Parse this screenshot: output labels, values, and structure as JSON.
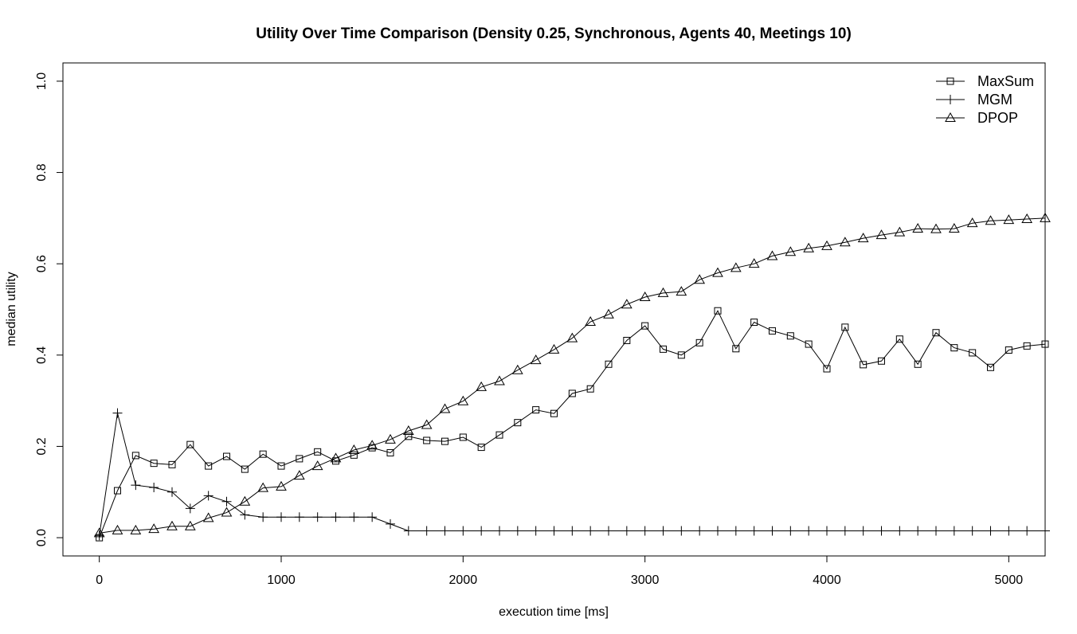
{
  "chart_data": {
    "type": "line",
    "title": "Utility Over Time Comparison (Density 0.25, Synchronous, Agents 40, Meetings 10)",
    "xlabel": "execution time [ms]",
    "ylabel": "median utility",
    "xlim": [
      -200,
      5200
    ],
    "ylim": [
      -0.04,
      1.04
    ],
    "xticks": [
      0,
      1000,
      2000,
      3000,
      4000,
      5000
    ],
    "yticks": [
      0.0,
      0.2,
      0.4,
      0.6,
      0.8,
      1.0
    ],
    "xtick_labels": [
      "0",
      "1000",
      "2000",
      "3000",
      "4000",
      "5000"
    ],
    "ytick_labels": [
      "0.0",
      "0.2",
      "0.4",
      "0.6",
      "0.8",
      "1.0"
    ],
    "grid": false,
    "legend_position": "top-right",
    "x": [
      0,
      100,
      200,
      300,
      400,
      500,
      600,
      700,
      800,
      900,
      1000,
      1100,
      1200,
      1300,
      1400,
      1500,
      1600,
      1700,
      1800,
      1900,
      2000,
      2100,
      2200,
      2300,
      2400,
      2500,
      2600,
      2700,
      2800,
      2900,
      3000,
      3100,
      3200,
      3300,
      3400,
      3500,
      3600,
      3700,
      3800,
      3900,
      4000,
      4100,
      4200,
      4300,
      4400,
      4500,
      4600,
      4700,
      4800,
      4900,
      5000,
      5100,
      5200
    ],
    "series": [
      {
        "name": "MaxSum",
        "marker": "square",
        "values": [
          0.0,
          0.103,
          0.18,
          0.163,
          0.16,
          0.204,
          0.157,
          0.178,
          0.15,
          0.183,
          0.157,
          0.173,
          0.188,
          0.168,
          0.181,
          0.197,
          0.186,
          0.222,
          0.213,
          0.211,
          0.22,
          0.198,
          0.225,
          0.252,
          0.28,
          0.272,
          0.316,
          0.326,
          0.38,
          0.432,
          0.464,
          0.413,
          0.4,
          0.427,
          0.497,
          0.414,
          0.472,
          0.453,
          0.442,
          0.424,
          0.37,
          0.461,
          0.379,
          0.387,
          0.435,
          0.38,
          0.449,
          0.416,
          0.405,
          0.373,
          0.411,
          0.42,
          0.424
        ]
      },
      {
        "name": "MGM",
        "marker": "plus",
        "values": [
          0.005,
          0.273,
          0.115,
          0.11,
          0.1,
          0.064,
          0.092,
          0.079,
          0.05,
          0.045,
          0.045,
          0.045,
          0.045,
          0.045,
          0.045,
          0.045,
          0.03,
          0.015,
          0.015,
          0.015,
          0.015,
          0.015,
          0.015,
          0.015,
          0.015,
          0.015,
          0.015,
          0.015,
          0.015,
          0.015,
          0.015,
          0.015,
          0.015,
          0.015,
          0.015,
          0.015,
          0.015,
          0.015,
          0.015,
          0.015,
          0.015,
          0.015,
          0.015,
          0.015,
          0.015,
          0.015,
          0.015,
          0.015,
          0.015,
          0.015,
          0.015,
          0.015,
          0.015
        ]
      },
      {
        "name": "DPOP",
        "marker": "triangle",
        "values": [
          0.01,
          0.016,
          0.016,
          0.019,
          0.025,
          0.025,
          0.043,
          0.055,
          0.079,
          0.109,
          0.112,
          0.136,
          0.157,
          0.174,
          0.192,
          0.202,
          0.215,
          0.234,
          0.247,
          0.282,
          0.299,
          0.33,
          0.343,
          0.367,
          0.389,
          0.412,
          0.437,
          0.473,
          0.489,
          0.511,
          0.527,
          0.536,
          0.539,
          0.565,
          0.58,
          0.591,
          0.6,
          0.617,
          0.626,
          0.634,
          0.639,
          0.647,
          0.656,
          0.663,
          0.669,
          0.677,
          0.676,
          0.677,
          0.689,
          0.694,
          0.696,
          0.698,
          0.7
        ]
      }
    ]
  }
}
